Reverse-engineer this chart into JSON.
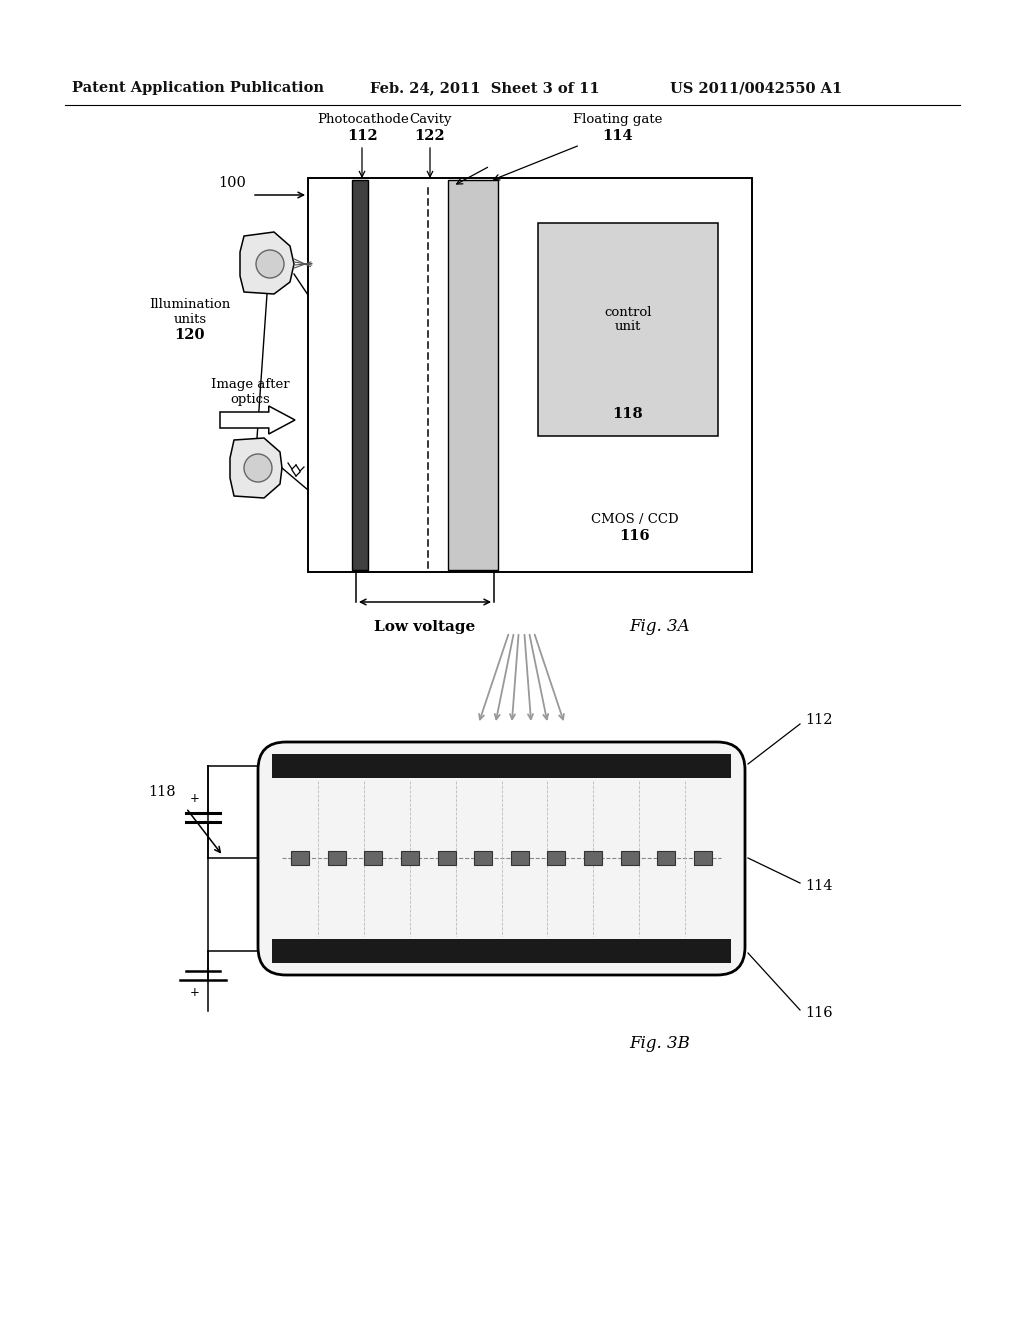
{
  "bg_color": "#ffffff",
  "header_left": "Patent Application Publication",
  "header_center": "Feb. 24, 2011  Sheet 3 of 11",
  "header_right": "US 2011/0042550 A1",
  "fig3a_label": "Fig. 3A",
  "fig3b_label": "Fig. 3B"
}
